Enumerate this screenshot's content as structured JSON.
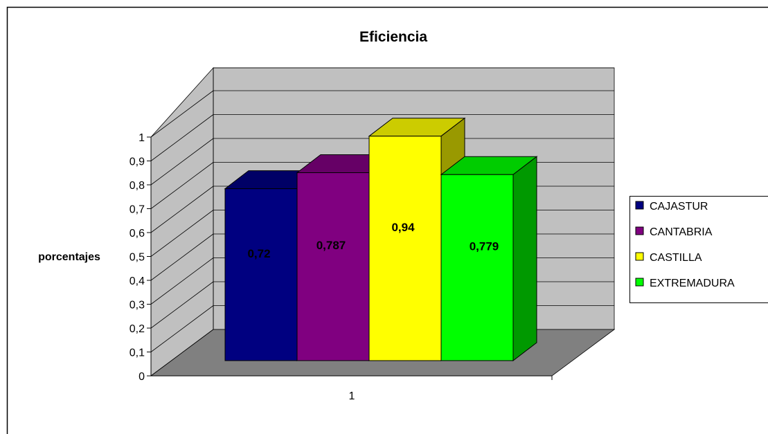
{
  "chart_data": {
    "type": "bar",
    "title": "Eficiencia",
    "xlabel": "",
    "ylabel": "porcentajes",
    "categories": [
      "1"
    ],
    "ylim": [
      0,
      1
    ],
    "yticks": [
      0,
      0.1,
      0.2,
      0.3,
      0.4,
      0.5,
      0.6,
      0.7,
      0.8,
      0.9,
      1
    ],
    "ytick_labels": [
      "0",
      "0,1",
      "0,2",
      "0,3",
      "0,4",
      "0,5",
      "0,6",
      "0,7",
      "0,8",
      "0,9",
      "1"
    ],
    "grid": true,
    "style": "3d-column",
    "legend_position": "right",
    "series": [
      {
        "name": "CAJASTUR",
        "values": [
          0.72
        ],
        "label": "0,72",
        "color": "#000080",
        "top_color": "#000066",
        "side_color": "#00004d"
      },
      {
        "name": "CANTABRIA",
        "values": [
          0.787
        ],
        "label": "0,787",
        "color": "#800080",
        "top_color": "#660066",
        "side_color": "#4d004d"
      },
      {
        "name": "CASTILLA",
        "values": [
          0.94
        ],
        "label": "0,94",
        "color": "#ffff00",
        "top_color": "#cccc00",
        "side_color": "#999900"
      },
      {
        "name": "EXTREMADURA",
        "values": [
          0.779
        ],
        "label": "0,779",
        "color": "#00ff00",
        "top_color": "#00cc00",
        "side_color": "#009900"
      }
    ],
    "wall_color": "#c0c0c0",
    "floor_color": "#808080"
  }
}
